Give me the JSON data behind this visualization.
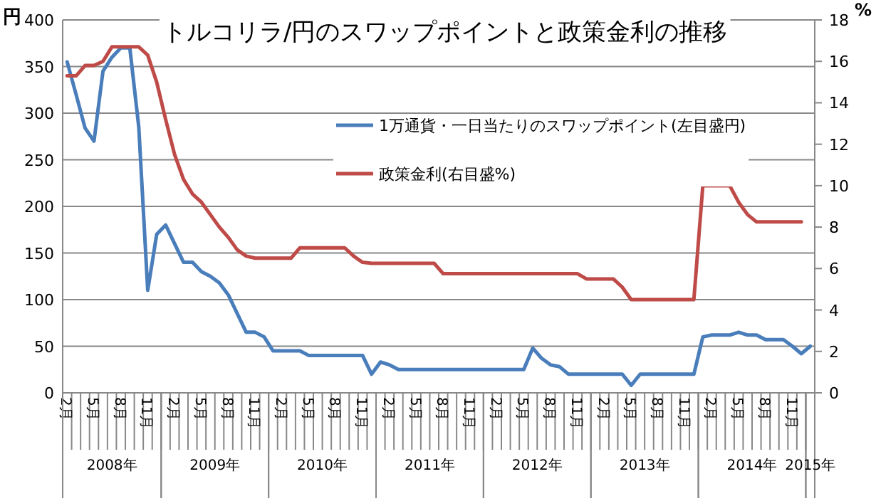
{
  "chart_data": {
    "type": "line",
    "title": "トルコリラ/円のスワップポイントと政策金利の推移",
    "ylabel": "円",
    "y2label": "%",
    "categories": [
      "2月",
      null,
      null,
      "5月",
      null,
      null,
      "8月",
      null,
      null,
      "11月",
      null,
      null,
      "2月",
      null,
      null,
      "5月",
      null,
      null,
      "8月",
      null,
      null,
      "11月",
      null,
      null,
      "2月",
      null,
      null,
      "5月",
      null,
      null,
      "8月",
      null,
      null,
      "11月",
      null,
      null,
      "2月",
      null,
      null,
      "5月",
      null,
      null,
      "8月",
      null,
      null,
      "11月",
      null,
      null,
      "2月",
      null,
      null,
      "5月",
      null,
      null,
      "8月",
      null,
      null,
      "11月",
      null,
      null,
      "2月",
      null,
      null,
      "5月",
      null,
      null,
      "8月",
      null,
      null,
      "11月",
      null,
      null,
      "2月",
      null,
      null,
      "5月",
      null,
      null,
      "8月",
      null,
      null,
      "11月",
      null,
      null
    ],
    "series": [
      {
        "name": "1万通貨・一日当たりのスワップポイント(左目盛円)",
        "color": "#4a7ebb",
        "values": [
          355,
          320,
          284,
          270,
          345,
          360,
          370,
          370,
          285,
          110,
          170,
          180,
          160,
          140,
          140,
          130,
          125,
          118,
          105,
          85,
          65,
          65,
          60,
          45,
          45,
          45,
          45,
          40,
          40,
          40,
          40,
          40,
          40,
          40,
          20,
          33,
          30,
          25,
          25,
          25,
          25,
          25,
          25,
          25,
          25,
          25,
          25,
          25,
          25,
          25,
          25,
          25,
          48,
          37,
          30,
          28,
          20,
          20,
          20,
          20,
          20,
          20,
          20,
          8,
          20,
          20,
          20,
          20,
          20,
          20,
          20,
          60,
          62,
          62,
          62,
          65,
          62,
          62,
          57,
          57,
          57,
          50,
          42,
          50
        ]
      },
      {
        "name": "政策金利(右目盛%)",
        "color": "#be4b48",
        "axis": "y2",
        "values": [
          15.3,
          15.3,
          15.8,
          15.8,
          16.0,
          16.7,
          16.7,
          16.7,
          16.7,
          16.3,
          15.0,
          13.2,
          11.5,
          10.3,
          9.6,
          9.2,
          8.6,
          8.0,
          7.5,
          6.9,
          6.6,
          6.5,
          6.5,
          6.5,
          6.5,
          6.5,
          7.0,
          7.0,
          7.0,
          7.0,
          7.0,
          7.0,
          6.6,
          6.3,
          6.25,
          6.25,
          6.25,
          6.25,
          6.25,
          6.25,
          6.25,
          6.25,
          5.75,
          5.75,
          5.75,
          5.75,
          5.75,
          5.75,
          5.75,
          5.75,
          5.75,
          5.75,
          5.75,
          5.75,
          5.75,
          5.75,
          5.75,
          5.75,
          5.5,
          5.5,
          5.5,
          5.5,
          5.1,
          4.5,
          4.5,
          4.5,
          4.5,
          4.5,
          4.5,
          4.5,
          4.5,
          10.0,
          10.0,
          10.0,
          10.0,
          9.2,
          8.6,
          8.25,
          8.25,
          8.25,
          8.25,
          8.25,
          8.25,
          null
        ]
      }
    ],
    "ylim": [
      0,
      400
    ],
    "yticks": [
      0,
      50,
      100,
      150,
      200,
      250,
      300,
      350,
      400
    ],
    "y2lim": [
      0,
      18
    ],
    "y2ticks": [
      0,
      2,
      4,
      6,
      8,
      10,
      12,
      14,
      16,
      18
    ],
    "grid": "y",
    "legend": "top right",
    "marker": "none",
    "line_style": "solid",
    "annotations": [
      "2008年",
      "2009年",
      "2010年",
      "2011年",
      "2012年",
      "2013年",
      "2014年",
      "2015年"
    ]
  }
}
